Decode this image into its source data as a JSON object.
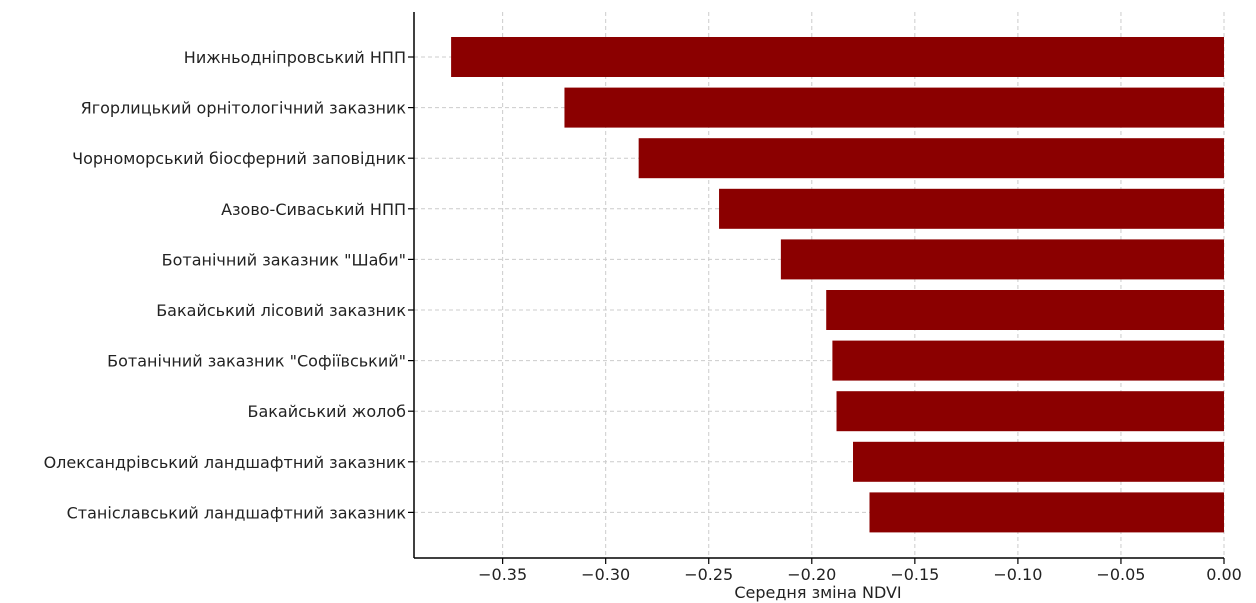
{
  "chart_data": {
    "type": "bar",
    "orientation": "horizontal",
    "title": "",
    "xlabel": "Середня зміна NDVI",
    "ylabel": "",
    "xlim": [
      -0.393,
      0.0
    ],
    "xticks": [
      -0.35,
      -0.3,
      -0.25,
      -0.2,
      -0.15,
      -0.1,
      -0.05,
      0.0
    ],
    "xtick_labels": [
      "−0.35",
      "−0.30",
      "−0.25",
      "−0.20",
      "−0.15",
      "−0.10",
      "−0.05",
      "0.00"
    ],
    "grid": true,
    "bar_color": "#8b0000",
    "categories": [
      "Нижньодніпровський НПП",
      "Ягорлицький орнітологічний заказник",
      "Чорноморський біосферний заповідник",
      "Азово-Сиваський НПП",
      "Ботанічний заказник \"Шаби\"",
      "Бакайський лісовий заказник",
      "Ботанічний заказник \"Софіївський\"",
      "Бакайський жолоб",
      "Олександрівський ландшафтний заказник",
      "Станіславський ландшафтний заказник"
    ],
    "values": [
      -0.375,
      -0.32,
      -0.284,
      -0.245,
      -0.215,
      -0.193,
      -0.19,
      -0.188,
      -0.18,
      -0.172
    ]
  }
}
